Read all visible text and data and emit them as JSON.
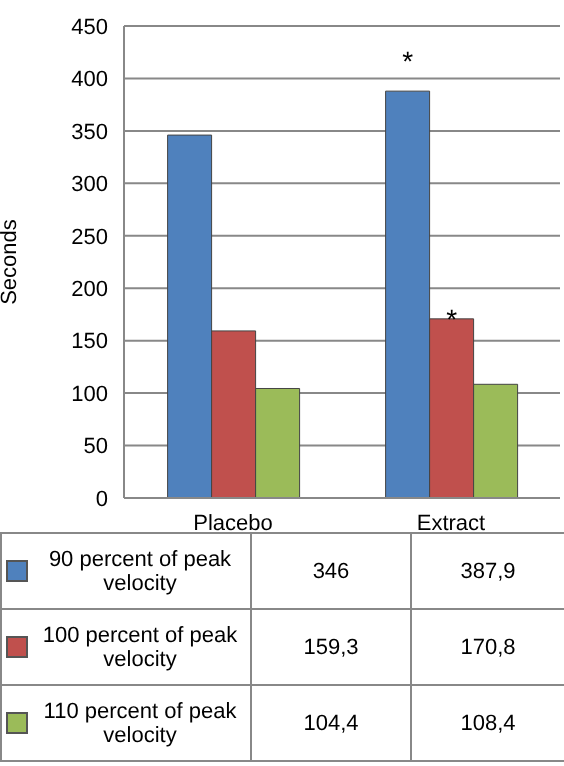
{
  "chart_data": {
    "type": "bar",
    "ylabel": "Seconds",
    "categories": [
      "Placebo",
      "Extract"
    ],
    "series": [
      {
        "name": "90 percent of peak velocity",
        "color": "#4f81bd",
        "values": [
          346,
          387.9
        ],
        "value_labels": [
          "346",
          "387,9"
        ]
      },
      {
        "name": "100 percent of peak velocity",
        "color": "#c0504d",
        "values": [
          159.3,
          170.8
        ],
        "value_labels": [
          "159,3",
          "170,8"
        ]
      },
      {
        "name": "110 percent of peak velocity",
        "color": "#9bbb59",
        "values": [
          104.4,
          108.4
        ],
        "value_labels": [
          "104,4",
          "108,4"
        ]
      }
    ],
    "ylim": [
      0,
      450
    ],
    "yticks": [
      0,
      50,
      100,
      150,
      200,
      250,
      300,
      350,
      400,
      450
    ],
    "grid": "y",
    "legend": "bottom",
    "annotations": [
      "*",
      {
        "text": "*",
        "x": "Extract",
        "y": 170.8
      }
    ]
  }
}
